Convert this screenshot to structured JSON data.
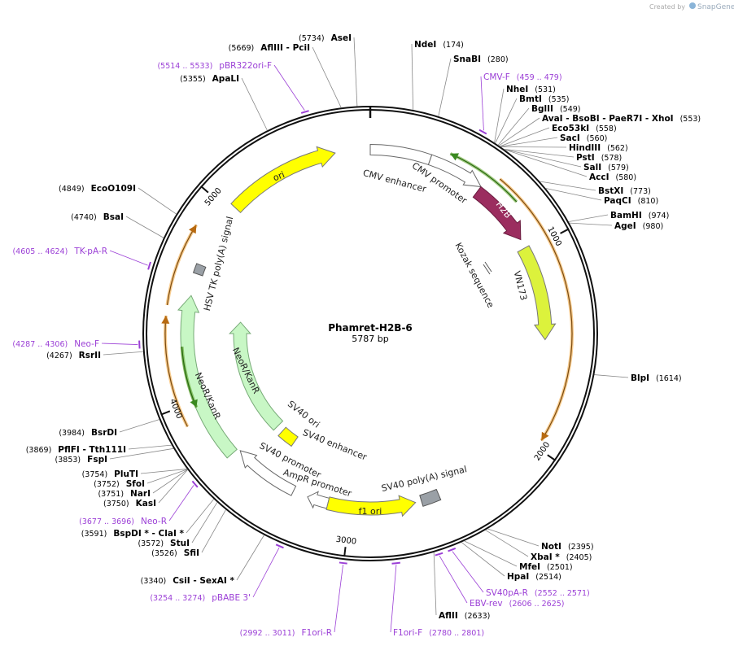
{
  "brand": {
    "prefix": "Created by",
    "name": "SnapGene"
  },
  "title": "Phamret-H2B-6",
  "length": {
    "value": 5787,
    "label": "5787 bp"
  },
  "ticks": [
    1000,
    2000,
    3000,
    4000,
    5000
  ],
  "sites": [
    {
      "name": "NdeI",
      "position": {
        "value": 174,
        "label": "(174)"
      }
    },
    {
      "name": "SnaBI",
      "position": {
        "value": 280,
        "label": "(280)"
      }
    },
    {
      "name": "NheI",
      "position": {
        "value": 531,
        "label": "(531)"
      }
    },
    {
      "name": "BmtI",
      "position": {
        "value": 535,
        "label": "(535)"
      }
    },
    {
      "name": "BglII",
      "position": {
        "value": 549,
        "label": "(549)"
      }
    },
    {
      "name": "AvaI   - BsoBI   - PaeR7I   - XhoI",
      "position": {
        "value": 553,
        "label": "(553)"
      }
    },
    {
      "name": "Eco53kI",
      "position": {
        "value": 558,
        "label": "(558)"
      }
    },
    {
      "name": "SacI",
      "position": {
        "value": 560,
        "label": "(560)"
      }
    },
    {
      "name": "HindIII",
      "position": {
        "value": 562,
        "label": "(562)"
      }
    },
    {
      "name": "PstI",
      "position": {
        "value": 578,
        "label": "(578)"
      }
    },
    {
      "name": "SalI",
      "position": {
        "value": 579,
        "label": "(579)"
      }
    },
    {
      "name": "AccI",
      "position": {
        "value": 580,
        "label": "(580)"
      }
    },
    {
      "name": "BstXI",
      "position": {
        "value": 773,
        "label": "(773)"
      }
    },
    {
      "name": "PaqCI",
      "position": {
        "value": 810,
        "label": "(810)"
      }
    },
    {
      "name": "BamHI",
      "position": {
        "value": 974,
        "label": "(974)"
      }
    },
    {
      "name": "AgeI",
      "position": {
        "value": 980,
        "label": "(980)"
      }
    },
    {
      "name": "BlpI",
      "position": {
        "value": 1614,
        "label": "(1614)"
      }
    },
    {
      "name": "NotI",
      "position": {
        "value": 2395,
        "label": "(2395)"
      }
    },
    {
      "name": "XbaI *",
      "position": {
        "value": 2405,
        "label": "(2405)"
      }
    },
    {
      "name": "MfeI",
      "position": {
        "value": 2501,
        "label": "(2501)"
      }
    },
    {
      "name": "HpaI",
      "position": {
        "value": 2514,
        "label": "(2514)"
      }
    },
    {
      "name": "AflII",
      "position": {
        "value": 2633,
        "label": "(2633)"
      }
    },
    {
      "name": "AseI",
      "position": {
        "value": 5734,
        "label": "(5734)"
      }
    },
    {
      "name": "AflIII   - PciI",
      "position": {
        "value": 5669,
        "label": "(5669)"
      }
    },
    {
      "name": "ApaLI",
      "position": {
        "value": 5355,
        "label": "(5355)"
      }
    },
    {
      "name": "EcoO109I",
      "position": {
        "value": 4849,
        "label": "(4849)"
      }
    },
    {
      "name": "BsaI",
      "position": {
        "value": 4740,
        "label": "(4740)"
      }
    },
    {
      "name": "RsrII",
      "position": {
        "value": 4267,
        "label": "(4267)"
      }
    },
    {
      "name": "BsrDI",
      "position": {
        "value": 3984,
        "label": "(3984)"
      }
    },
    {
      "name": "PflFI   - Tth111I",
      "position": {
        "value": 3869,
        "label": "(3869)"
      }
    },
    {
      "name": "FspI",
      "position": {
        "value": 3853,
        "label": "(3853)"
      }
    },
    {
      "name": "PluTI",
      "position": {
        "value": 3754,
        "label": "(3754)"
      }
    },
    {
      "name": "SfoI",
      "position": {
        "value": 3752,
        "label": "(3752)"
      }
    },
    {
      "name": "NarI",
      "position": {
        "value": 3751,
        "label": "(3751)"
      }
    },
    {
      "name": "KasI",
      "position": {
        "value": 3750,
        "label": "(3750)"
      }
    },
    {
      "name": "BspDI *   - ClaI *",
      "position": {
        "value": 3591,
        "label": "(3591)"
      }
    },
    {
      "name": "StuI",
      "position": {
        "value": 3572,
        "label": "(3572)"
      }
    },
    {
      "name": "SfiI",
      "position": {
        "value": 3526,
        "label": "(3526)"
      }
    },
    {
      "name": "CsiI   - SexAI *",
      "position": {
        "value": 3340,
        "label": "(3340)"
      }
    }
  ],
  "primers": [
    {
      "name": "CMV-F",
      "range": {
        "start": 459,
        "end": 479,
        "label": "(459 .. 479)"
      }
    },
    {
      "name": "SV40pA-R",
      "range": {
        "start": 2552,
        "end": 2571,
        "label": "(2552 .. 2571)"
      }
    },
    {
      "name": "EBV-rev",
      "range": {
        "start": 2606,
        "end": 2625,
        "label": "(2606 .. 2625)"
      }
    },
    {
      "name": "F1ori-F",
      "range": {
        "start": 2780,
        "end": 2801,
        "label": "(2780 .. 2801)"
      }
    },
    {
      "name": "pBR322ori-F",
      "range": {
        "start": 5514,
        "end": 5533,
        "label": "(5514 .. 5533)"
      }
    },
    {
      "name": "TK-pA-R",
      "range": {
        "start": 4605,
        "end": 4624,
        "label": "(4605 .. 4624)"
      }
    },
    {
      "name": "Neo-F",
      "range": {
        "start": 4287,
        "end": 4306,
        "label": "(4287 .. 4306)"
      }
    },
    {
      "name": "Neo-R",
      "range": {
        "start": 3677,
        "end": 3696,
        "label": "(3677 .. 3696)"
      }
    },
    {
      "name": "pBABE 3'",
      "range": {
        "start": 3254,
        "end": 3274,
        "label": "(3254 .. 3274)"
      }
    },
    {
      "name": "F1ori-R",
      "range": {
        "start": 2992,
        "end": 3011,
        "label": "(2992 .. 3011)"
      }
    }
  ],
  "features": [
    {
      "label": "CMV enhancer"
    },
    {
      "label": "CMV promoter"
    },
    {
      "label": "H2B"
    },
    {
      "label": "Kozak sequence"
    },
    {
      "label": "VN173"
    },
    {
      "label": "ori"
    },
    {
      "label": "HSV TK poly(A) signal"
    },
    {
      "label": "NeoR/KanR"
    },
    {
      "label": "NeoR/KanR"
    },
    {
      "label": "SV40 ori"
    },
    {
      "label": "SV40 enhancer"
    },
    {
      "label": "SV40 promoter"
    },
    {
      "label": "AmpR promoter"
    },
    {
      "label": "f1 ori"
    },
    {
      "label": "SV40 poly(A) signal"
    }
  ]
}
